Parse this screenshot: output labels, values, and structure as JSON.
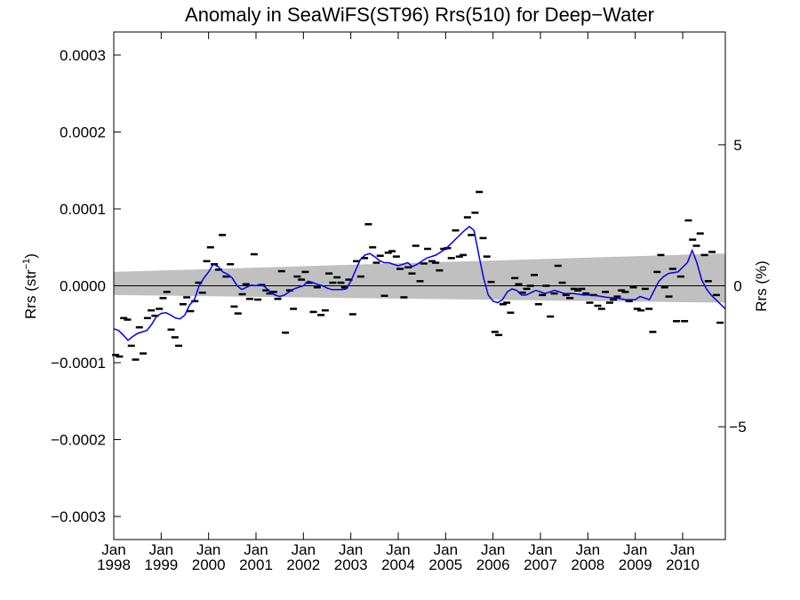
{
  "chart_data": {
    "type": "scatter",
    "title": "Anomaly in SeaWiFS(ST96) Rrs(510) for Deep−Water",
    "ylabel": "Rrs (str",
    "ylabel_sup": "−1",
    "ylabel_end": ")",
    "y2label": "Rrs (%)",
    "xlim": [
      1998.0,
      2010.9
    ],
    "ylim": [
      -0.00033,
      0.00033
    ],
    "y2lim": [
      -9.0,
      9.0
    ],
    "y_ticks": [
      {
        "value": 0.0003,
        "label": "0.0003"
      },
      {
        "value": 0.0002,
        "label": "0.0002"
      },
      {
        "value": 0.0001,
        "label": "0.0001"
      },
      {
        "value": 0.0,
        "label": "0.0000"
      },
      {
        "value": -0.0001,
        "label": "−0.0001"
      },
      {
        "value": -0.0002,
        "label": "−0.0002"
      },
      {
        "value": -0.0003,
        "label": "−0.0003"
      }
    ],
    "y2_ticks": [
      {
        "value": 5,
        "label": "5"
      },
      {
        "value": 0,
        "label": "0"
      },
      {
        "value": -5,
        "label": "−5"
      }
    ],
    "x_ticks": [
      {
        "value": 1998,
        "label1": "Jan",
        "label2": "1998"
      },
      {
        "value": 1999,
        "label1": "Jan",
        "label2": "1999"
      },
      {
        "value": 2000,
        "label1": "Jan",
        "label2": "2000"
      },
      {
        "value": 2001,
        "label1": "Jan",
        "label2": "2001"
      },
      {
        "value": 2002,
        "label1": "Jan",
        "label2": "2002"
      },
      {
        "value": 2003,
        "label1": "Jan",
        "label2": "2003"
      },
      {
        "value": 2004,
        "label1": "Jan",
        "label2": "2004"
      },
      {
        "value": 2005,
        "label1": "Jan",
        "label2": "2005"
      },
      {
        "value": 2006,
        "label1": "Jan",
        "label2": "2006"
      },
      {
        "value": 2007,
        "label1": "Jan",
        "label2": "2007"
      },
      {
        "value": 2008,
        "label1": "Jan",
        "label2": "2008"
      },
      {
        "value": 2009,
        "label1": "Jan",
        "label2": "2009"
      },
      {
        "value": 2010,
        "label1": "Jan",
        "label2": "2010"
      }
    ],
    "zero_line": 0.0,
    "confidence_band": {
      "color": "#c0c0c0",
      "x": [
        1998.0,
        2010.9
      ],
      "upper": [
        1.8e-05,
        4.2e-05
      ],
      "lower": [
        -1.2e-05,
        -2.2e-05
      ]
    },
    "points": {
      "name": "monthly anomaly",
      "color": "#000000",
      "x": [
        1998.04,
        1998.12,
        1998.21,
        1998.29,
        1998.37,
        1998.46,
        1998.54,
        1998.62,
        1998.71,
        1998.79,
        1998.87,
        1998.96,
        1999.04,
        1999.12,
        1999.21,
        1999.29,
        1999.37,
        1999.46,
        1999.54,
        1999.62,
        1999.71,
        1999.79,
        1999.87,
        1999.96,
        2000.04,
        2000.12,
        2000.21,
        2000.29,
        2000.37,
        2000.46,
        2000.54,
        2000.62,
        2000.71,
        2000.79,
        2000.87,
        2000.96,
        2001.04,
        2001.12,
        2001.21,
        2001.29,
        2001.37,
        2001.46,
        2001.54,
        2001.62,
        2001.71,
        2001.79,
        2001.87,
        2001.96,
        2002.04,
        2002.12,
        2002.21,
        2002.29,
        2002.37,
        2002.46,
        2002.54,
        2002.62,
        2002.71,
        2002.79,
        2002.87,
        2002.96,
        2003.04,
        2003.12,
        2003.21,
        2003.29,
        2003.37,
        2003.46,
        2003.54,
        2003.62,
        2003.71,
        2003.79,
        2003.87,
        2003.96,
        2004.04,
        2004.12,
        2004.21,
        2004.29,
        2004.37,
        2004.46,
        2004.54,
        2004.62,
        2004.71,
        2004.79,
        2004.87,
        2004.96,
        2005.04,
        2005.12,
        2005.21,
        2005.29,
        2005.37,
        2005.46,
        2005.54,
        2005.62,
        2005.71,
        2005.79,
        2005.87,
        2005.96,
        2006.04,
        2006.12,
        2006.21,
        2006.29,
        2006.37,
        2006.46,
        2006.54,
        2006.62,
        2006.71,
        2006.79,
        2006.87,
        2006.96,
        2007.04,
        2007.12,
        2007.21,
        2007.29,
        2007.37,
        2007.46,
        2007.54,
        2007.62,
        2007.71,
        2007.79,
        2007.87,
        2007.96,
        2008.04,
        2008.12,
        2008.21,
        2008.29,
        2008.37,
        2008.46,
        2008.54,
        2008.62,
        2008.71,
        2008.79,
        2008.87,
        2008.96,
        2009.04,
        2009.12,
        2009.21,
        2009.29,
        2009.37,
        2009.46,
        2009.54,
        2009.62,
        2009.71,
        2009.79,
        2009.87,
        2009.96,
        2010.04,
        2010.12,
        2010.21,
        2010.29,
        2010.37,
        2010.46,
        2010.54,
        2010.62,
        2010.71,
        2010.79
      ],
      "y": [
        -9e-05,
        -9.2e-05,
        -4.2e-05,
        -4.4e-05,
        -7.8e-05,
        -9.6e-05,
        -5.4e-05,
        -8.8e-05,
        -4.2e-05,
        -3.2e-05,
        -3.9e-05,
        -3e-05,
        -1.6e-05,
        -8e-06,
        -5.7e-05,
        -6.7e-05,
        -7.8e-05,
        -2.4e-05,
        -1.5e-05,
        -3.3e-05,
        -2e-05,
        4e-06,
        -9e-06,
        3.2e-05,
        5e-05,
        2.8e-05,
        2.1e-05,
        6.6e-05,
        1.2e-05,
        2.8e-05,
        -2.7e-05,
        -3.6e-05,
        -1.1e-05,
        2e-06,
        -1.7e-05,
        4.1e-05,
        -1.8e-05,
        1e-06,
        -6e-06,
        -1e-05,
        -8e-06,
        -1.7e-05,
        1.9e-05,
        -6.1e-05,
        -6e-06,
        -3e-05,
        1.2e-05,
        8e-06,
        1.8e-05,
        4e-06,
        -3.4e-05,
        -2e-06,
        -3.8e-05,
        -3.2e-05,
        1.6e-05,
        4e-06,
        1.1e-05,
        4e-06,
        -2e-06,
        8e-06,
        -3.7e-05,
        3.2e-05,
        1.2e-05,
        3.6e-05,
        8e-05,
        5e-05,
        3e-05,
        3.9e-05,
        -1.3e-05,
        4.3e-05,
        4.5e-05,
        3.8e-05,
        2.2e-05,
        -1.5e-05,
        2.4e-05,
        1.6e-05,
        5.2e-05,
        6e-06,
        2.9e-05,
        4.8e-05,
        3.2e-05,
        3e-05,
        2e-05,
        4.8e-05,
        4.9e-05,
        3.6e-05,
        7.2e-05,
        3.8e-05,
        4e-05,
        8.9e-05,
        6.6e-05,
        9.5e-05,
        0.000122,
        6.2e-05,
        3.8e-05,
        5e-06,
        -6e-05,
        -6.4e-05,
        -2.4e-05,
        -2.2e-05,
        -3.5e-05,
        1e-05,
        2e-06,
        -9e-06,
        -4e-06,
        0.0,
        1.4e-05,
        -2.4e-05,
        -1.2e-05,
        0.0,
        -4e-05,
        -1e-05,
        2.6e-05,
        4e-06,
        -1.2e-05,
        -1.6e-05,
        -4e-06,
        -6e-06,
        -4e-06,
        -1e-05,
        -2.2e-05,
        -1.2e-05,
        -2.6e-05,
        -3e-05,
        -8e-06,
        -2.2e-05,
        -1.8e-05,
        -1.4e-05,
        -6e-06,
        -8e-06,
        -2e-05,
        -2e-06,
        -3e-05,
        -3.2e-05,
        -4e-06,
        -3e-05,
        -6e-05,
        1.8e-05,
        4e-05,
        -2e-06,
        -1.4e-05,
        2.2e-05,
        -4.6e-05,
        1.2e-05,
        -4.6e-05,
        8.5e-05,
        6e-05,
        5.2e-05,
        6.8e-05,
        4e-05,
        6e-06,
        4.4e-05,
        -1.2e-05,
        -4.8e-05
      ]
    },
    "smooth": {
      "name": "smoothed",
      "color": "#0000ee",
      "x": [
        1998.0,
        1998.1,
        1998.2,
        1998.3,
        1998.4,
        1998.5,
        1998.6,
        1998.7,
        1998.8,
        1998.9,
        1999.0,
        1999.1,
        1999.2,
        1999.3,
        1999.4,
        1999.5,
        1999.6,
        1999.7,
        1999.8,
        1999.9,
        2000.0,
        2000.1,
        2000.2,
        2000.3,
        2000.4,
        2000.5,
        2000.6,
        2000.7,
        2000.8,
        2000.9,
        2001.0,
        2001.1,
        2001.2,
        2001.3,
        2001.4,
        2001.5,
        2001.6,
        2001.7,
        2001.8,
        2001.9,
        2002.0,
        2002.1,
        2002.2,
        2002.3,
        2002.4,
        2002.5,
        2002.6,
        2002.7,
        2002.8,
        2002.9,
        2003.0,
        2003.1,
        2003.2,
        2003.3,
        2003.4,
        2003.5,
        2003.6,
        2003.7,
        2003.8,
        2003.9,
        2004.0,
        2004.1,
        2004.2,
        2004.3,
        2004.4,
        2004.5,
        2004.6,
        2004.7,
        2004.8,
        2004.9,
        2005.0,
        2005.1,
        2005.2,
        2005.3,
        2005.4,
        2005.5,
        2005.6,
        2005.7,
        2005.8,
        2005.9,
        2006.0,
        2006.1,
        2006.2,
        2006.3,
        2006.4,
        2006.5,
        2006.6,
        2006.7,
        2006.8,
        2006.9,
        2007.0,
        2007.1,
        2007.2,
        2007.3,
        2007.4,
        2007.5,
        2007.6,
        2007.7,
        2007.8,
        2007.9,
        2008.0,
        2008.2,
        2008.4,
        2008.6,
        2008.8,
        2009.0,
        2009.1,
        2009.2,
        2009.3,
        2009.4,
        2009.5,
        2009.6,
        2009.7,
        2009.8,
        2009.9,
        2010.0,
        2010.1,
        2010.2,
        2010.3,
        2010.4,
        2010.5,
        2010.6,
        2010.7,
        2010.8,
        2010.9
      ],
      "y": [
        -5.6e-05,
        -5.8e-05,
        -6.4e-05,
        -7.1e-05,
        -6.6e-05,
        -6.2e-05,
        -6e-05,
        -5.8e-05,
        -5e-05,
        -4e-05,
        -3.6e-05,
        -3.5e-05,
        -3.8e-05,
        -4.2e-05,
        -4.3e-05,
        -3.8e-05,
        -2.5e-05,
        -1.8e-05,
        0.0,
        1e-05,
        1.8e-05,
        2.8e-05,
        2.5e-05,
        1.8e-05,
        1.5e-05,
        1e-05,
        0.0,
        -5e-06,
        -2e-06,
        1e-06,
        0.0,
        2e-06,
        -2e-06,
        -8e-06,
        -1.2e-05,
        -1.4e-05,
        -1.2e-05,
        -8e-06,
        -4e-06,
        -2e-06,
        0.0,
        6e-06,
        4e-06,
        2e-06,
        0.0,
        -3e-06,
        -5e-06,
        -5e-06,
        -5e-06,
        -4e-06,
        6e-06,
        2e-05,
        3.4e-05,
        4e-05,
        4.2e-05,
        3.8e-05,
        3.3e-05,
        3e-05,
        3e-05,
        2.8e-05,
        2.6e-05,
        2.8e-05,
        3e-05,
        2.5e-05,
        2.8e-05,
        3.2e-05,
        3.6e-05,
        3.8e-05,
        4e-05,
        4.4e-05,
        4.8e-05,
        5.4e-05,
        6e-05,
        6.6e-05,
        7.2e-05,
        7.7e-05,
        7.2e-05,
        4e-05,
        1e-05,
        -1.2e-05,
        -2e-05,
        -2.2e-05,
        -1.8e-05,
        -8e-06,
        -4e-06,
        -6e-06,
        -1.2e-05,
        -1.2e-05,
        -9e-06,
        -6e-06,
        -8e-06,
        -1e-05,
        -8e-06,
        -6e-06,
        -8e-06,
        -1e-05,
        -1e-05,
        -1e-05,
        -1.1e-05,
        -1.2e-05,
        -1.2e-05,
        -1.3e-05,
        -1.5e-05,
        -1.6e-05,
        -1.8e-05,
        -1.8e-05,
        -1.4e-05,
        -1.6e-05,
        -1.8e-05,
        -6e-06,
        6e-06,
        1.2e-05,
        1.6e-05,
        1.7e-05,
        1.8e-05,
        2.4e-05,
        3e-05,
        4.6e-05,
        3e-05,
        8e-06,
        -4e-06,
        -1.2e-05,
        -1.8e-05,
        -2.4e-05,
        -3e-05
      ]
    }
  }
}
